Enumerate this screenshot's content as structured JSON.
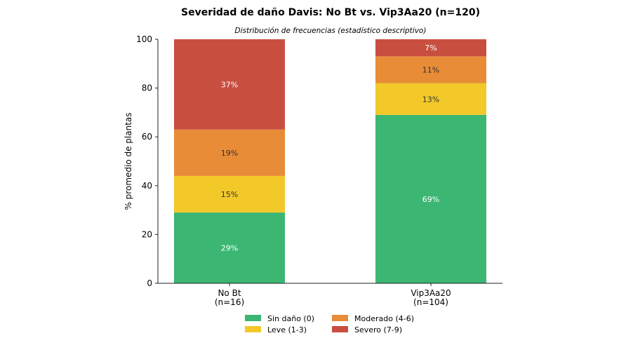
{
  "chart_data": {
    "type": "bar",
    "stacked": true,
    "title": "Severidad de daño Davis: No Bt vs. Vip3Aa20 (n=120)",
    "subtitle": "Distribución de frecuencias (estadístico descriptivo)",
    "ylabel": "% promedio de plantas",
    "ylim": [
      0,
      100
    ],
    "yticks": [
      0,
      20,
      40,
      60,
      80,
      100
    ],
    "categories": [
      [
        "No Bt",
        "(n=16)"
      ],
      [
        "Vip3Aa20",
        "(n=104)"
      ]
    ],
    "series": [
      {
        "name": "Sin daño (0)",
        "color": "#3bb673",
        "label_color": "#ffffff",
        "values": [
          29,
          69
        ],
        "labels": [
          "29%",
          "69%"
        ]
      },
      {
        "name": "Leve (1-3)",
        "color": "#f2c929",
        "label_color": "#333333",
        "values": [
          15,
          13
        ],
        "labels": [
          "15%",
          "13%"
        ]
      },
      {
        "name": "Moderado (4-6)",
        "color": "#e88c37",
        "label_color": "#333333",
        "values": [
          19,
          11
        ],
        "labels": [
          "19%",
          "11%"
        ]
      },
      {
        "name": "Severo (7-9)",
        "color": "#c84f40",
        "label_color": "#ffffff",
        "values": [
          37,
          7
        ],
        "labels": [
          "37%",
          "7%"
        ]
      }
    ],
    "legend_position": "bottom",
    "grid": false
  }
}
